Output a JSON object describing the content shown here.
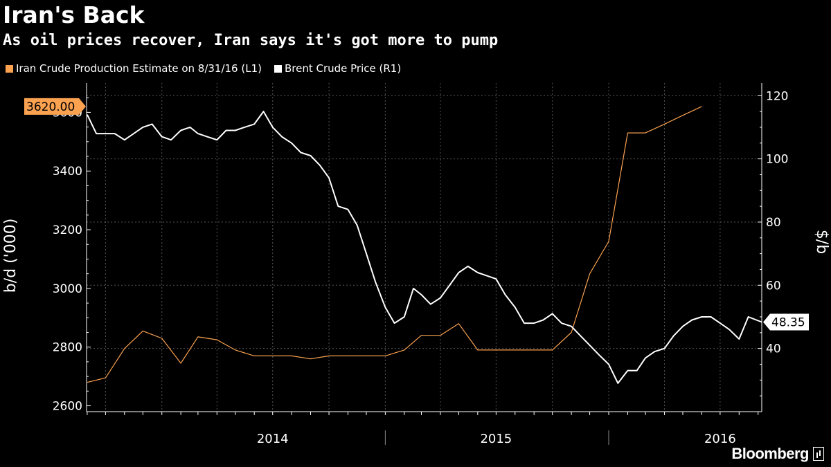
{
  "chart_data": {
    "type": "line",
    "title": "Iran's Back",
    "subtitle": "As oil prices recover, Iran says it's got more to pump",
    "legend_placement": "top-left",
    "grid": true,
    "x_range": [
      "2013-08-31",
      "2016-09-07"
    ],
    "x_years": [
      {
        "label": "2014",
        "date": "2014-07-01"
      },
      {
        "label": "2015",
        "date": "2015-07-01"
      },
      {
        "label": "2016",
        "date": "2016-07-01"
      }
    ],
    "y_left": {
      "label": "b/d ('000)",
      "ylim": [
        2580,
        3700
      ],
      "ticks": [
        2600,
        2800,
        3000,
        3200,
        3400,
        3600
      ]
    },
    "y_right": {
      "label": "$/b",
      "ylim": [
        20,
        124
      ],
      "ticks": [
        40,
        60,
        80,
        100,
        120
      ]
    },
    "series": [
      {
        "name": "Iran Crude Production Estimate on 8/31/16 (L1)",
        "axis": "left",
        "color": "#FBA251",
        "last_value_label": "3620.00",
        "points": [
          [
            "2013-09-01",
            2680
          ],
          [
            "2013-10-01",
            2695
          ],
          [
            "2013-11-01",
            2795
          ],
          [
            "2013-12-01",
            2855
          ],
          [
            "2014-01-01",
            2830
          ],
          [
            "2014-02-01",
            2745
          ],
          [
            "2014-03-01",
            2835
          ],
          [
            "2014-04-01",
            2825
          ],
          [
            "2014-05-01",
            2790
          ],
          [
            "2014-06-01",
            2770
          ],
          [
            "2014-07-01",
            2770
          ],
          [
            "2014-08-01",
            2770
          ],
          [
            "2014-09-01",
            2760
          ],
          [
            "2014-10-01",
            2770
          ],
          [
            "2014-11-01",
            2770
          ],
          [
            "2014-12-01",
            2770
          ],
          [
            "2015-01-01",
            2770
          ],
          [
            "2015-02-01",
            2790
          ],
          [
            "2015-03-01",
            2840
          ],
          [
            "2015-04-01",
            2840
          ],
          [
            "2015-05-01",
            2880
          ],
          [
            "2015-06-01",
            2790
          ],
          [
            "2015-07-01",
            2790
          ],
          [
            "2015-08-01",
            2790
          ],
          [
            "2015-09-01",
            2790
          ],
          [
            "2015-10-01",
            2790
          ],
          [
            "2015-11-01",
            2850
          ],
          [
            "2015-12-01",
            3050
          ],
          [
            "2016-01-01",
            3160
          ],
          [
            "2016-02-01",
            3530
          ],
          [
            "2016-03-01",
            3530
          ],
          [
            "2016-04-01",
            3560
          ],
          [
            "2016-05-01",
            3590
          ],
          [
            "2016-06-01",
            3620
          ]
        ]
      },
      {
        "name": "Brent Crude Price (R1)",
        "axis": "right",
        "color": "#FFFFFF",
        "last_value_label": "48.35",
        "points": [
          [
            "2013-09-01",
            114
          ],
          [
            "2013-09-16",
            108
          ],
          [
            "2013-10-01",
            108
          ],
          [
            "2013-10-16",
            108
          ],
          [
            "2013-11-01",
            106
          ],
          [
            "2013-11-16",
            108
          ],
          [
            "2013-12-01",
            110
          ],
          [
            "2013-12-16",
            111
          ],
          [
            "2014-01-01",
            107
          ],
          [
            "2014-01-16",
            106
          ],
          [
            "2014-02-01",
            109
          ],
          [
            "2014-02-16",
            110
          ],
          [
            "2014-03-01",
            108
          ],
          [
            "2014-03-16",
            107
          ],
          [
            "2014-04-01",
            106
          ],
          [
            "2014-04-16",
            109
          ],
          [
            "2014-05-01",
            109
          ],
          [
            "2014-05-16",
            110
          ],
          [
            "2014-06-01",
            111
          ],
          [
            "2014-06-16",
            115
          ],
          [
            "2014-07-01",
            110
          ],
          [
            "2014-07-16",
            107
          ],
          [
            "2014-08-01",
            105
          ],
          [
            "2014-08-16",
            102
          ],
          [
            "2014-09-01",
            101
          ],
          [
            "2014-09-16",
            98
          ],
          [
            "2014-10-01",
            94
          ],
          [
            "2014-10-16",
            85
          ],
          [
            "2014-11-01",
            84
          ],
          [
            "2014-11-16",
            79
          ],
          [
            "2014-12-01",
            70
          ],
          [
            "2014-12-16",
            61
          ],
          [
            "2015-01-01",
            53
          ],
          [
            "2015-01-16",
            48
          ],
          [
            "2015-02-01",
            50
          ],
          [
            "2015-02-16",
            59
          ],
          [
            "2015-03-01",
            57
          ],
          [
            "2015-03-16",
            54
          ],
          [
            "2015-04-01",
            56
          ],
          [
            "2015-04-16",
            60
          ],
          [
            "2015-05-01",
            64
          ],
          [
            "2015-05-16",
            66
          ],
          [
            "2015-06-01",
            64
          ],
          [
            "2015-06-16",
            63
          ],
          [
            "2015-07-01",
            62
          ],
          [
            "2015-07-16",
            57
          ],
          [
            "2015-08-01",
            53
          ],
          [
            "2015-08-16",
            48
          ],
          [
            "2015-09-01",
            48
          ],
          [
            "2015-09-16",
            49
          ],
          [
            "2015-10-01",
            51
          ],
          [
            "2015-10-16",
            48
          ],
          [
            "2015-11-01",
            47
          ],
          [
            "2015-11-16",
            44
          ],
          [
            "2015-12-01",
            41
          ],
          [
            "2015-12-16",
            38
          ],
          [
            "2016-01-01",
            35
          ],
          [
            "2016-01-16",
            29
          ],
          [
            "2016-02-01",
            33
          ],
          [
            "2016-02-16",
            33
          ],
          [
            "2016-03-01",
            37
          ],
          [
            "2016-03-16",
            39
          ],
          [
            "2016-04-01",
            40
          ],
          [
            "2016-04-16",
            44
          ],
          [
            "2016-05-01",
            47
          ],
          [
            "2016-05-16",
            49
          ],
          [
            "2016-06-01",
            50
          ],
          [
            "2016-06-16",
            50
          ],
          [
            "2016-07-01",
            48
          ],
          [
            "2016-07-16",
            46
          ],
          [
            "2016-08-01",
            43
          ],
          [
            "2016-08-16",
            50
          ],
          [
            "2016-09-07",
            48.35
          ]
        ]
      }
    ]
  },
  "footer": {
    "brand": "Bloomberg"
  }
}
